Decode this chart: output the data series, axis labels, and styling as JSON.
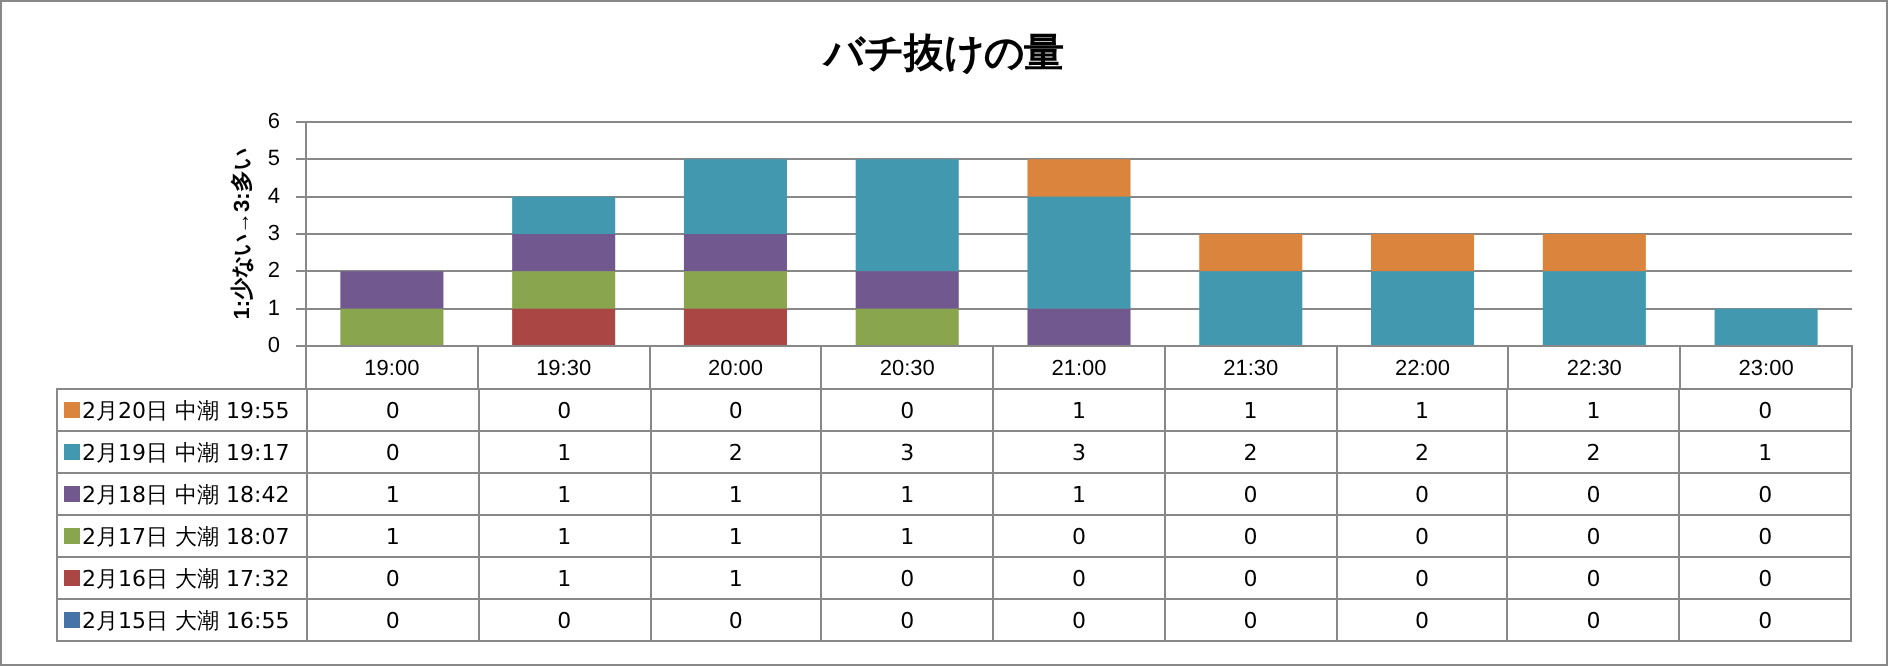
{
  "chart_data": {
    "type": "bar",
    "title": "バチ抜けの量",
    "ylabel": "1:少ない→3:多い",
    "categories": [
      "19:00",
      "19:30",
      "20:00",
      "20:30",
      "21:00",
      "21:30",
      "22:00",
      "22:30",
      "23:00"
    ],
    "series": [
      {
        "name": "2月15日 大潮 16:55",
        "color": "#4572a7",
        "values": [
          0,
          0,
          0,
          0,
          0,
          0,
          0,
          0,
          0
        ]
      },
      {
        "name": "2月16日 大潮 17:32",
        "color": "#aa4643",
        "values": [
          0,
          1,
          1,
          0,
          0,
          0,
          0,
          0,
          0
        ]
      },
      {
        "name": "2月17日 大潮 18:07",
        "color": "#89a54e",
        "values": [
          1,
          1,
          1,
          1,
          0,
          0,
          0,
          0,
          0
        ]
      },
      {
        "name": "2月18日 中潮 18:42",
        "color": "#71588f",
        "values": [
          1,
          1,
          1,
          1,
          1,
          0,
          0,
          0,
          0
        ]
      },
      {
        "name": "2月19日 中潮 19:17",
        "color": "#4198af",
        "values": [
          0,
          1,
          2,
          3,
          3,
          2,
          2,
          2,
          1
        ]
      },
      {
        "name": "2月20日 中潮 19:55",
        "color": "#db843d",
        "values": [
          0,
          0,
          0,
          0,
          1,
          1,
          1,
          1,
          0
        ]
      }
    ],
    "stacked": true,
    "ylim": [
      0,
      6
    ],
    "yticks": [
      0,
      1,
      2,
      3,
      4,
      5,
      6
    ],
    "grid": "y",
    "legend": "bottom",
    "data_labels": true
  }
}
